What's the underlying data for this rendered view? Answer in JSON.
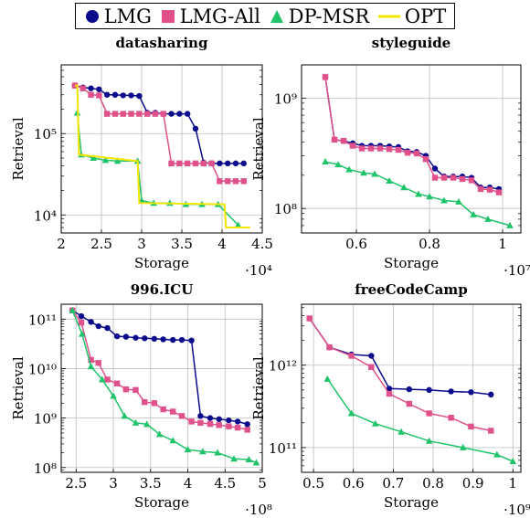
{
  "legend": [
    {
      "name": "LMG",
      "color": "#0a0a8c",
      "marker": "circle"
    },
    {
      "name": "LMG-All",
      "color": "#e0508a",
      "marker": "square"
    },
    {
      "name": "DP-MSR",
      "color": "#1fc46a",
      "marker": "triangle"
    },
    {
      "name": "OPT",
      "color": "#f2e600",
      "marker": "none"
    }
  ],
  "chart_data": [
    {
      "type": "line",
      "title": "datasharing",
      "xlabel": "Storage",
      "ylabel": "Retrieval",
      "x_multiplier": "·10⁴",
      "xlim": [
        2,
        4.5
      ],
      "ylim": [
        6000,
        700000
      ],
      "yscale": "log",
      "xticks": [
        "2",
        "2.5",
        "3",
        "3.5",
        "4",
        "4.5"
      ],
      "xtick_values": [
        2,
        2.5,
        3,
        3.5,
        4,
        4.5
      ],
      "yticks": [
        "10⁴",
        "10⁵"
      ],
      "ytick_values": [
        10000,
        100000
      ],
      "grid": true,
      "series": [
        {
          "name": "LMG",
          "x": [
            2.17,
            2.27,
            2.37,
            2.47,
            2.57,
            2.67,
            2.77,
            2.87,
            2.97,
            3.07,
            3.17,
            3.27,
            3.37,
            3.47,
            3.57,
            3.67,
            3.77,
            3.87,
            3.97,
            4.07,
            4.17,
            4.27
          ],
          "y": [
            390000,
            370000,
            360000,
            350000,
            300000,
            300000,
            295000,
            295000,
            290000,
            180000,
            180000,
            175000,
            175000,
            175000,
            175000,
            115000,
            44000,
            43000,
            43000,
            43000,
            43000,
            43000
          ]
        },
        {
          "name": "LMG-All",
          "x": [
            2.17,
            2.27,
            2.37,
            2.47,
            2.57,
            2.67,
            2.77,
            2.87,
            2.97,
            3.07,
            3.17,
            3.27,
            3.37,
            3.47,
            3.57,
            3.67,
            3.77,
            3.87,
            3.97,
            4.07,
            4.17,
            4.27
          ],
          "y": [
            390000,
            360000,
            300000,
            295000,
            175000,
            175000,
            175000,
            175000,
            175000,
            175000,
            175000,
            175000,
            43000,
            43000,
            43000,
            43000,
            43000,
            43000,
            26000,
            26000,
            26000,
            26000
          ]
        },
        {
          "name": "DP-MSR",
          "x": [
            2.2,
            2.25,
            2.4,
            2.55,
            2.7,
            2.95,
            3.0,
            3.15,
            3.35,
            3.55,
            3.75,
            3.95,
            4.2
          ],
          "y": [
            180000,
            55000,
            50000,
            47000,
            46000,
            46000,
            15000,
            14000,
            14000,
            13500,
            13500,
            13500,
            7500
          ]
        },
        {
          "name": "OPT",
          "x": [
            2.17,
            2.2,
            2.22,
            2.95,
            2.97,
            4.03,
            4.05,
            4.35
          ],
          "y": [
            390000,
            390000,
            55000,
            46000,
            14000,
            13500,
            7000,
            7000
          ],
          "marker": "none"
        }
      ]
    },
    {
      "type": "line",
      "title": "styleguide",
      "xlabel": "Storage",
      "ylabel": "Retrieval",
      "x_multiplier": "·10⁷",
      "xlim": [
        0.45,
        1.05
      ],
      "ylim": [
        60000000,
        2000000000
      ],
      "yscale": "log",
      "xticks": [
        "0.6",
        "0.8",
        "1"
      ],
      "xtick_values": [
        0.6,
        0.8,
        1
      ],
      "yticks": [
        "10⁸",
        "10⁹"
      ],
      "ytick_values": [
        100000000,
        1000000000
      ],
      "grid": true,
      "series": [
        {
          "name": "LMG",
          "x": [
            0.515,
            0.54,
            0.565,
            0.59,
            0.615,
            0.64,
            0.665,
            0.69,
            0.715,
            0.74,
            0.765,
            0.79,
            0.815,
            0.84,
            0.865,
            0.89,
            0.915,
            0.94,
            0.965,
            0.99
          ],
          "y": [
            1550000000,
            420000000,
            410000000,
            390000000,
            370000000,
            370000000,
            370000000,
            365000000,
            360000000,
            330000000,
            325000000,
            300000000,
            230000000,
            195000000,
            195000000,
            195000000,
            190000000,
            155000000,
            155000000,
            150000000
          ]
        },
        {
          "name": "LMG-All",
          "x": [
            0.515,
            0.54,
            0.565,
            0.59,
            0.615,
            0.64,
            0.665,
            0.69,
            0.715,
            0.74,
            0.765,
            0.79,
            0.815,
            0.84,
            0.865,
            0.89,
            0.915,
            0.94,
            0.965,
            0.99
          ],
          "y": [
            1550000000,
            420000000,
            410000000,
            370000000,
            350000000,
            350000000,
            350000000,
            345000000,
            340000000,
            320000000,
            315000000,
            280000000,
            190000000,
            190000000,
            190000000,
            185000000,
            180000000,
            150000000,
            148000000,
            140000000
          ]
        },
        {
          "name": "DP-MSR",
          "x": [
            0.515,
            0.55,
            0.58,
            0.62,
            0.65,
            0.69,
            0.73,
            0.77,
            0.8,
            0.84,
            0.88,
            0.92,
            0.96,
            1.02
          ],
          "y": [
            265000000,
            250000000,
            225000000,
            210000000,
            205000000,
            178000000,
            155000000,
            135000000,
            128000000,
            118000000,
            115000000,
            88000000,
            80000000,
            70000000
          ]
        }
      ]
    },
    {
      "type": "line",
      "title": "996.ICU",
      "xlabel": "Storage",
      "ylabel": "Retrieval",
      "x_multiplier": "·10⁸",
      "xlim": [
        2.3,
        5.0
      ],
      "ylim": [
        80000000,
        200000000000
      ],
      "yscale": "log",
      "xticks": [
        "2.5",
        "3",
        "3.5",
        "4",
        "4.5",
        "5"
      ],
      "xtick_values": [
        2.5,
        3,
        3.5,
        4,
        4.5,
        5
      ],
      "yticks": [
        "10⁸",
        "10⁹",
        "10¹⁰",
        "10¹¹"
      ],
      "ytick_values": [
        100000000,
        1000000000,
        10000000000,
        100000000000
      ],
      "grid": true,
      "series": [
        {
          "name": "LMG",
          "x": [
            2.45,
            2.57,
            2.7,
            2.8,
            2.92,
            3.05,
            3.17,
            3.3,
            3.42,
            3.55,
            3.67,
            3.8,
            3.92,
            4.05,
            4.17,
            4.3,
            4.42,
            4.55,
            4.67,
            4.8
          ],
          "y": [
            150000000000,
            115000000000,
            88000000000,
            72000000000,
            66000000000,
            45000000000,
            44000000000,
            42000000000,
            41000000000,
            40000000000,
            39000000000,
            38000000000,
            38000000000,
            37000000000,
            1100000000,
            1000000000,
            950000000,
            900000000,
            850000000,
            750000000
          ]
        },
        {
          "name": "LMG-All",
          "x": [
            2.45,
            2.57,
            2.7,
            2.8,
            2.92,
            3.05,
            3.17,
            3.3,
            3.42,
            3.55,
            3.67,
            3.8,
            3.92,
            4.05,
            4.17,
            4.3,
            4.42,
            4.55,
            4.67,
            4.8
          ],
          "y": [
            150000000000,
            85000000000,
            15000000000,
            13000000000,
            6000000000,
            5000000000,
            3800000000,
            3700000000,
            2100000000,
            2000000000,
            1500000000,
            1350000000,
            1100000000,
            850000000,
            800000000,
            760000000,
            720000000,
            680000000,
            640000000,
            580000000
          ]
        },
        {
          "name": "DP-MSR",
          "x": [
            2.45,
            2.58,
            2.7,
            2.85,
            3.0,
            3.15,
            3.3,
            3.45,
            3.62,
            3.8,
            4.0,
            4.2,
            4.4,
            4.62,
            4.82,
            4.92
          ],
          "y": [
            150000000000,
            50000000000,
            11000000000,
            6000000000,
            2800000000,
            1100000000,
            800000000,
            750000000,
            470000000,
            350000000,
            230000000,
            210000000,
            200000000,
            150000000,
            145000000,
            125000000
          ]
        }
      ]
    },
    {
      "type": "line",
      "title": "freeCodeCamp",
      "xlabel": "Storage",
      "ylabel": "Retrieval",
      "x_multiplier": "·10⁹",
      "xlim": [
        0.47,
        1.02
      ],
      "ylim": [
        50000000000,
        5500000000000
      ],
      "yscale": "log",
      "xticks": [
        "0.5",
        "0.6",
        "0.7",
        "0.8",
        "0.9",
        "1"
      ],
      "xtick_values": [
        0.5,
        0.6,
        0.7,
        0.8,
        0.9,
        1
      ],
      "yticks": [
        "10¹¹",
        "10¹²"
      ],
      "ytick_values": [
        100000000000,
        1000000000000
      ],
      "grid": true,
      "series": [
        {
          "name": "LMG",
          "x": [
            0.49,
            0.54,
            0.595,
            0.645,
            0.69,
            0.74,
            0.79,
            0.845,
            0.895,
            0.945
          ],
          "y": [
            3700000000000,
            1650000000000,
            1350000000000,
            1300000000000,
            520000000000,
            510000000000,
            500000000000,
            480000000000,
            470000000000,
            440000000000
          ]
        },
        {
          "name": "LMG-All",
          "x": [
            0.49,
            0.54,
            0.595,
            0.645,
            0.69,
            0.74,
            0.79,
            0.845,
            0.895,
            0.945
          ],
          "y": [
            3700000000000,
            1650000000000,
            1300000000000,
            950000000000,
            450000000000,
            340000000000,
            260000000000,
            230000000000,
            180000000000,
            160000000000
          ]
        },
        {
          "name": "DP-MSR",
          "x": [
            0.535,
            0.595,
            0.655,
            0.72,
            0.79,
            0.875,
            0.96,
            1.0
          ],
          "y": [
            680000000000,
            260000000000,
            195000000000,
            155000000000,
            120000000000,
            100000000000,
            82000000000,
            68000000000
          ]
        }
      ]
    }
  ]
}
